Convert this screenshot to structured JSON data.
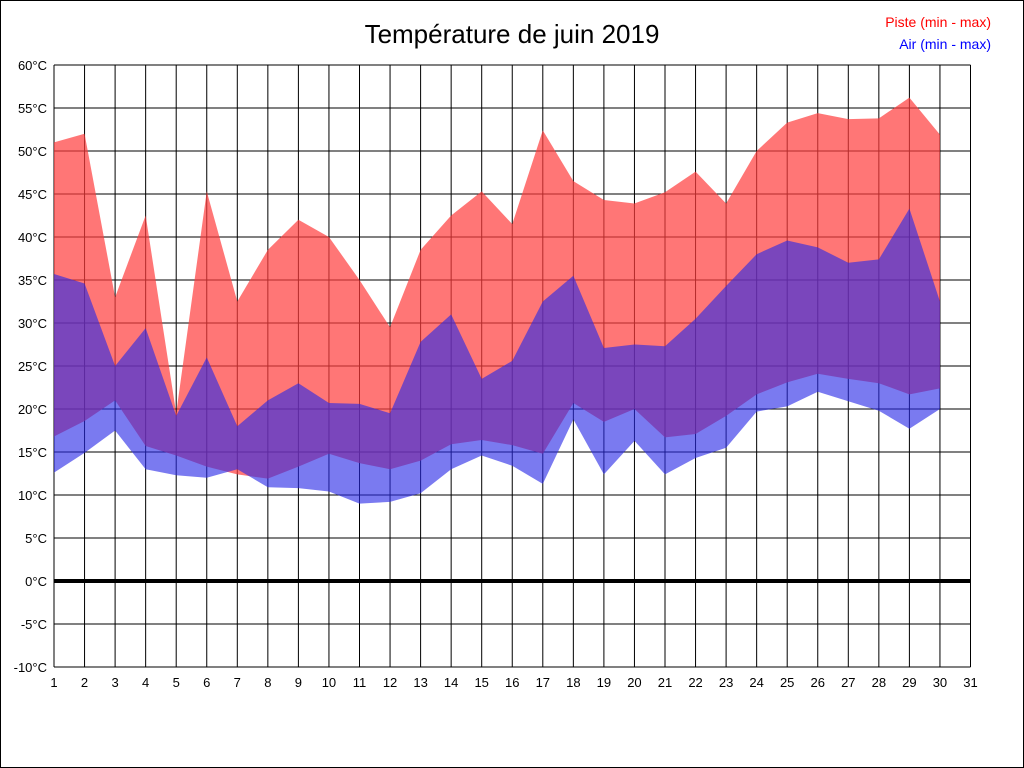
{
  "title": "Température de juin 2019",
  "legend": {
    "piste_label": "Piste (min - max)",
    "air_label": "Air (min - max)",
    "piste_color": "#ff0000",
    "air_color": "#0000ff"
  },
  "chart_data": {
    "type": "area",
    "title": "Température de juin 2019",
    "xlabel": "",
    "ylabel": "",
    "x_days": [
      1,
      2,
      3,
      4,
      5,
      6,
      7,
      8,
      9,
      10,
      11,
      12,
      13,
      14,
      15,
      16,
      17,
      18,
      19,
      20,
      21,
      22,
      23,
      24,
      25,
      26,
      27,
      28,
      29,
      30
    ],
    "x_tick_labels": [
      "1",
      "2",
      "3",
      "4",
      "5",
      "6",
      "7",
      "8",
      "9",
      "10",
      "11",
      "12",
      "13",
      "14",
      "15",
      "16",
      "17",
      "18",
      "19",
      "20",
      "21",
      "22",
      "23",
      "24",
      "25",
      "26",
      "27",
      "28",
      "29",
      "30",
      "31"
    ],
    "y_tick_labels": [
      "60°C",
      "55°C",
      "50°C",
      "45°C",
      "40°C",
      "35°C",
      "30°C",
      "25°C",
      "20°C",
      "15°C",
      "10°C",
      "5°C",
      "0°C",
      "-5°C",
      "-10°C"
    ],
    "y_ticks": [
      60,
      55,
      50,
      45,
      40,
      35,
      30,
      25,
      20,
      15,
      10,
      5,
      0,
      -5,
      -10
    ],
    "xlim": [
      1,
      31
    ],
    "ylim": [
      -10,
      60
    ],
    "grid": true,
    "zero_line": true,
    "legend_position": "top-right",
    "series": [
      {
        "name": "Piste (min - max)",
        "fill": "rgba(255,60,60,0.70)",
        "max": [
          51,
          52,
          33,
          42.5,
          19.5,
          45.3,
          32.5,
          38.5,
          42,
          40,
          35,
          29.5,
          38.5,
          42.5,
          45.3,
          41.5,
          52.4,
          46.5,
          44.3,
          43.9,
          45.2,
          47.6,
          43.9,
          50,
          53.3,
          54.4,
          53.7,
          53.8,
          56.2,
          51.9
        ],
        "min": [
          16.8,
          18.6,
          21,
          15.7,
          14.6,
          13.3,
          12.4,
          11.9,
          13.3,
          14.8,
          13.7,
          13,
          14,
          15.9,
          16.4,
          15.8,
          14.8,
          20.7,
          18.5,
          20,
          16.7,
          17.1,
          19.2,
          21.7,
          23.1,
          24.1,
          23.5,
          23,
          21.7,
          22.4
        ]
      },
      {
        "name": "Air (min - max)",
        "fill": "rgba(40,40,230,0.62)",
        "max": [
          35.7,
          34.6,
          25,
          29.4,
          19.2,
          26,
          18,
          21,
          23,
          20.7,
          20.6,
          19.5,
          27.8,
          31,
          23.5,
          25.6,
          32.5,
          35.5,
          27.1,
          27.5,
          27.3,
          30.5,
          34.3,
          38,
          39.6,
          38.8,
          37,
          37.4,
          43.3,
          32.5
        ],
        "min": [
          12.6,
          14.9,
          17.5,
          13,
          12.3,
          12,
          13,
          10.9,
          10.8,
          10.4,
          9,
          9.2,
          10.2,
          13,
          14.6,
          13.4,
          11.3,
          18.8,
          12.4,
          16.3,
          12.4,
          14.3,
          15.5,
          19.7,
          20.3,
          22,
          20.9,
          19.8,
          17.7,
          20
        ]
      }
    ]
  }
}
